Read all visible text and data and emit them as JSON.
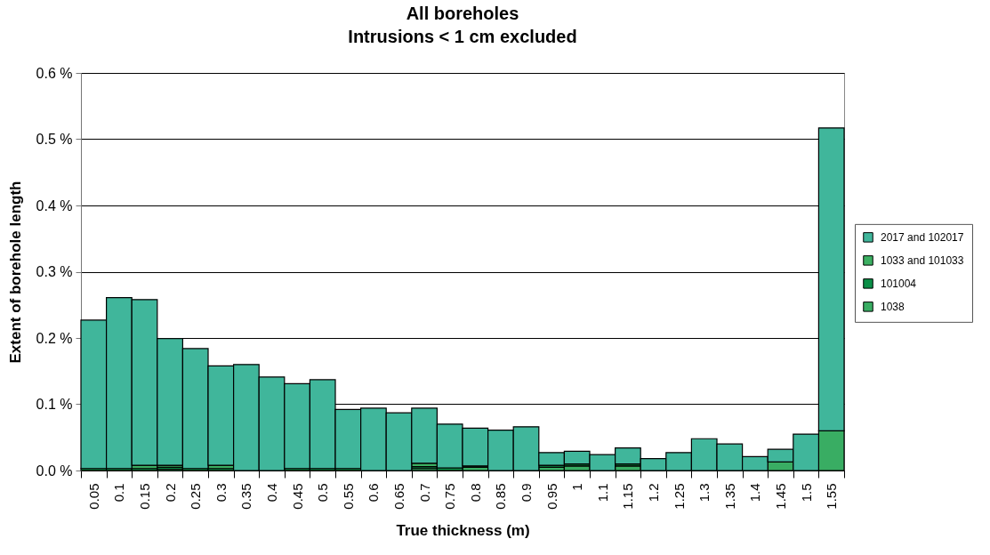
{
  "chart_data": {
    "type": "bar",
    "title": "All boreholes",
    "subtitle": "Intrusions < 1 cm excluded",
    "xlabel": "True thickness (m)",
    "ylabel": "Extent of borehole length",
    "categories": [
      "0.05",
      "0.1",
      "0.15",
      "0.2",
      "0.25",
      "0.3",
      "0.35",
      "0.4",
      "0.45",
      "0.5",
      "0.55",
      "0.6",
      "0.65",
      "0.7",
      "0.75",
      "0.8",
      "0.85",
      "0.9",
      "0.95",
      "1",
      "1.1",
      "1.15",
      "1.2",
      "1.25",
      "1.3",
      "1.35",
      "1.4",
      "1.45",
      "1.5",
      "1.55"
    ],
    "stacked": true,
    "series": [
      {
        "name": "1038",
        "color": "#39ad63",
        "values": [
          null,
          null,
          null,
          0.002,
          null,
          null,
          null,
          null,
          null,
          null,
          null,
          null,
          null,
          0.003,
          null,
          0.005,
          null,
          null,
          0.005,
          0.007,
          null,
          0.007,
          null,
          null,
          null,
          null,
          null,
          0.013,
          null,
          0.06
        ]
      },
      {
        "name": "101004",
        "color": "#0b8f47",
        "values": [
          0.003,
          0.003,
          0.003,
          0.003,
          0.003,
          0.003,
          null,
          null,
          0.003,
          0.003,
          0.003,
          null,
          null,
          0.003,
          0.004,
          0.002,
          null,
          null,
          0.003,
          0.003,
          null,
          0.003,
          null,
          null,
          null,
          null,
          null,
          null,
          null,
          null
        ]
      },
      {
        "name": "1033 and 101033",
        "color": "#3cb062",
        "values": [
          null,
          null,
          0.005,
          0.003,
          null,
          0.005,
          null,
          null,
          null,
          null,
          null,
          null,
          null,
          0.005,
          null,
          null,
          null,
          null,
          null,
          null,
          null,
          null,
          null,
          null,
          null,
          null,
          null,
          null,
          null,
          null
        ]
      },
      {
        "name": "2017 and 102017",
        "color": "#40b69b",
        "values": [
          0.224,
          0.258,
          0.25,
          0.191,
          0.181,
          0.15,
          0.16,
          0.141,
          0.128,
          0.134,
          0.089,
          0.094,
          0.087,
          0.083,
          0.066,
          0.057,
          0.061,
          0.066,
          0.019,
          0.019,
          0.024,
          0.024,
          0.018,
          0.027,
          0.048,
          0.04,
          0.021,
          0.019,
          0.055,
          0.457
        ]
      }
    ],
    "ylim": [
      0,
      0.6
    ],
    "yticks": [
      {
        "value": 0,
        "label": "0.0 %"
      },
      {
        "value": 0.1,
        "label": "0.1 %"
      },
      {
        "value": 0.2,
        "label": "0.2 %"
      },
      {
        "value": 0.3,
        "label": "0.3 %"
      },
      {
        "value": 0.4,
        "label": "0.4 %"
      },
      {
        "value": 0.5,
        "label": "0.5 %"
      },
      {
        "value": 0.6,
        "label": "0.6 %"
      }
    ],
    "grid": "y",
    "legend": "right"
  }
}
